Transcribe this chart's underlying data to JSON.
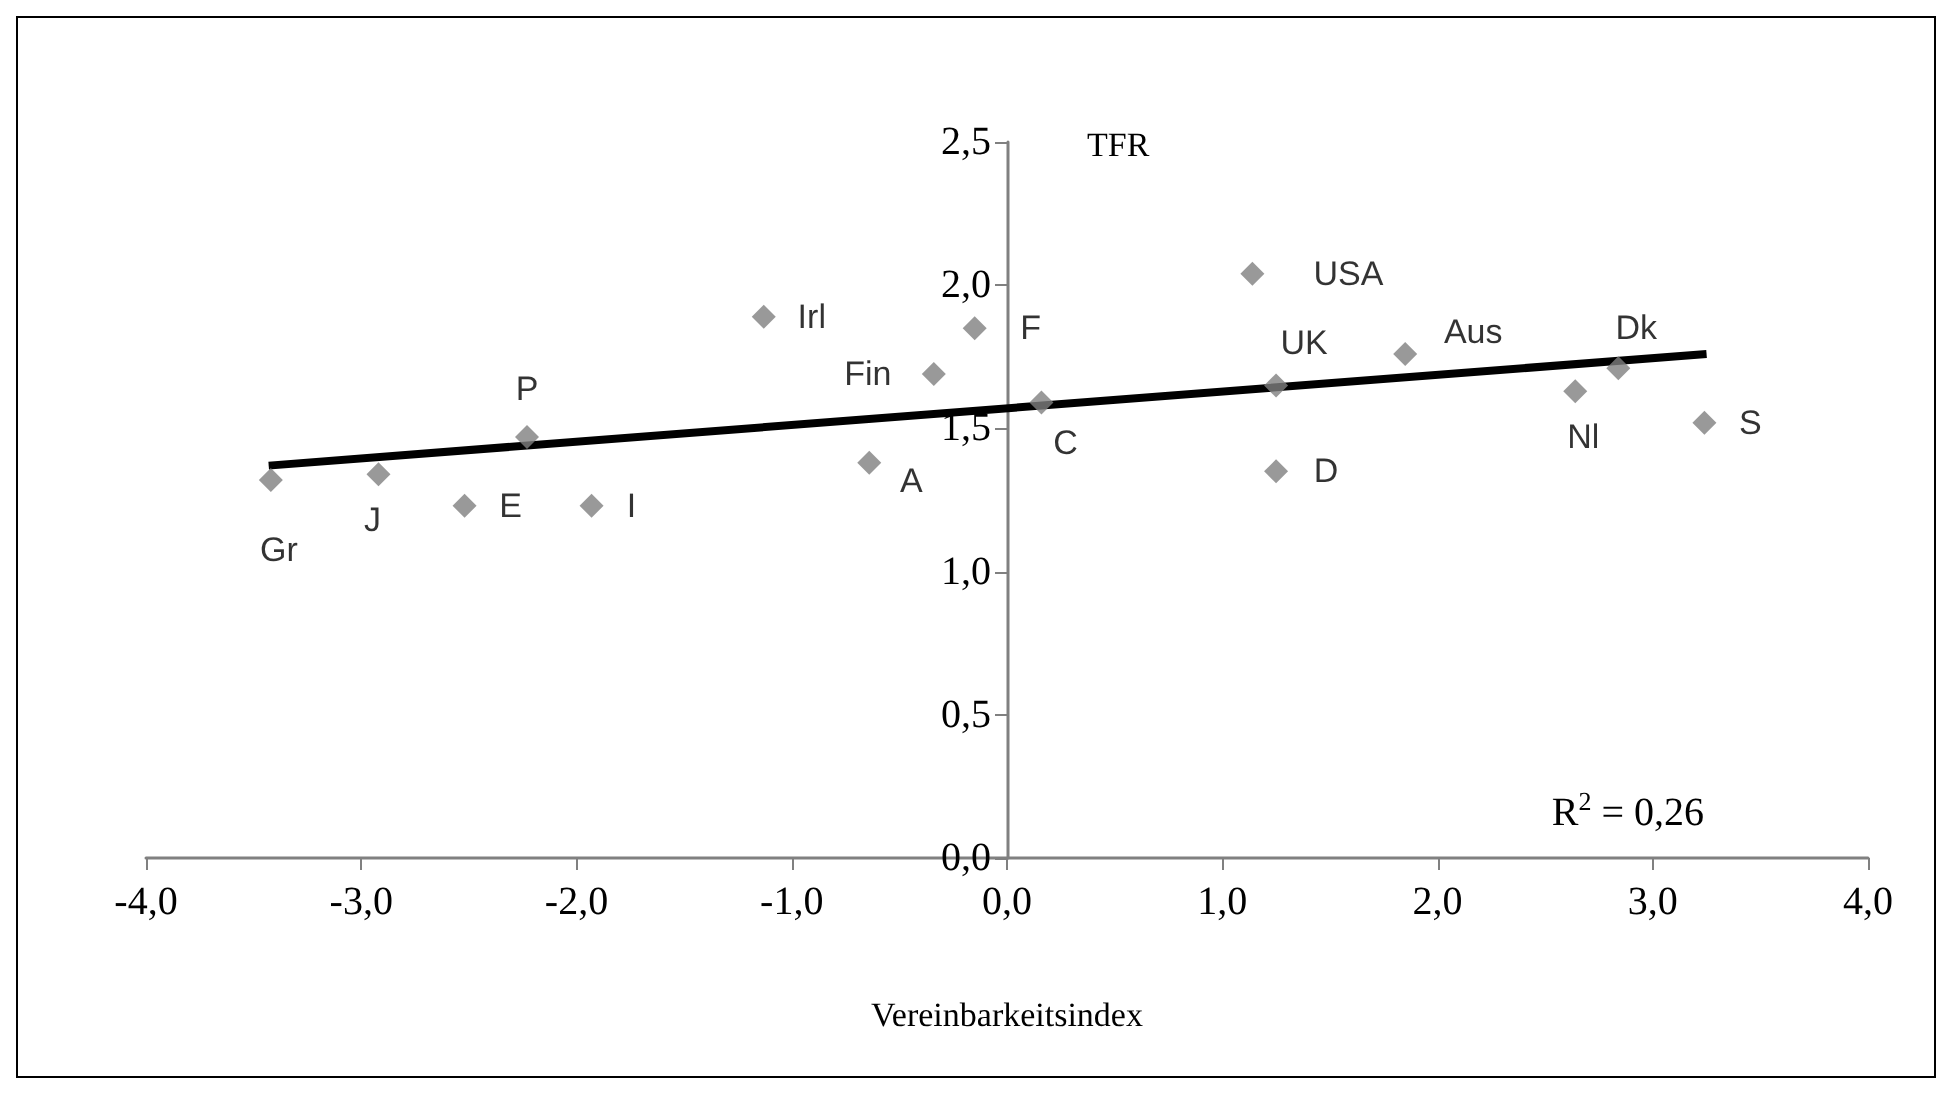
{
  "chart_data": {
    "type": "scatter",
    "xlabel": "Vereinbarkeitsindex",
    "ylabel": "TFR",
    "xlim": [
      -4,
      4
    ],
    "ylim": [
      0,
      2.5
    ],
    "xticks": [
      {
        "value": -4,
        "label": "-4,0"
      },
      {
        "value": -3,
        "label": "-3,0"
      },
      {
        "value": -2,
        "label": "-2,0"
      },
      {
        "value": -1,
        "label": "-1,0"
      },
      {
        "value": 0,
        "label": "0,0"
      },
      {
        "value": 1,
        "label": "1,0"
      },
      {
        "value": 2,
        "label": "2,0"
      },
      {
        "value": 3,
        "label": "3,0"
      },
      {
        "value": 4,
        "label": "4,0"
      }
    ],
    "yticks": [
      {
        "value": 0,
        "label": "0,0"
      },
      {
        "value": 0.5,
        "label": "0,5"
      },
      {
        "value": 1,
        "label": "1,0"
      },
      {
        "value": 1.5,
        "label": "1,5"
      },
      {
        "value": 2,
        "label": "2,0"
      },
      {
        "value": 2.5,
        "label": "2,5"
      }
    ],
    "grid": false,
    "series": [
      {
        "marker": "diamond",
        "color": "#808080",
        "x": [
          -3.42,
          -2.92,
          -2.52,
          -1.93,
          -2.23,
          -1.13,
          -0.64,
          -0.34,
          -0.15,
          0.16,
          1.14,
          1.25,
          1.25,
          1.85,
          2.64,
          2.84,
          3.24
        ],
        "values": [
          1.32,
          1.34,
          1.23,
          1.23,
          1.47,
          1.89,
          1.38,
          1.69,
          1.85,
          1.59,
          2.04,
          1.65,
          1.35,
          1.76,
          1.63,
          1.71,
          1.52
        ]
      },
      {
        "type": "line",
        "marker": "none",
        "color": "#000000",
        "x": [
          -3.43,
          3.25
        ],
        "values": [
          1.37,
          1.76
        ]
      }
    ],
    "annotations": [
      {
        "text": "Gr",
        "x": -3.42,
        "y": 1.32
      },
      {
        "text": "J",
        "x": -2.92,
        "y": 1.34
      },
      {
        "text": "E",
        "x": -2.52,
        "y": 1.23
      },
      {
        "text": "I",
        "x": -1.93,
        "y": 1.23
      },
      {
        "text": "P",
        "x": -2.23,
        "y": 1.47
      },
      {
        "text": "Irl",
        "x": -1.13,
        "y": 1.89
      },
      {
        "text": "A",
        "x": -0.64,
        "y": 1.38
      },
      {
        "text": "Fin",
        "x": -0.34,
        "y": 1.69
      },
      {
        "text": "F",
        "x": -0.15,
        "y": 1.85
      },
      {
        "text": "C",
        "x": 0.16,
        "y": 1.59
      },
      {
        "text": "USA",
        "x": 1.14,
        "y": 2.04
      },
      {
        "text": "UK",
        "x": 1.25,
        "y": 1.65
      },
      {
        "text": "D",
        "x": 1.25,
        "y": 1.35
      },
      {
        "text": "Aus",
        "x": 1.85,
        "y": 1.76
      },
      {
        "text": "Nl",
        "x": 2.64,
        "y": 1.63
      },
      {
        "text": "Dk",
        "x": 2.84,
        "y": 1.71
      },
      {
        "text": "S",
        "x": 3.24,
        "y": 1.52
      },
      "R$^{2}$ = 0,26"
    ]
  }
}
